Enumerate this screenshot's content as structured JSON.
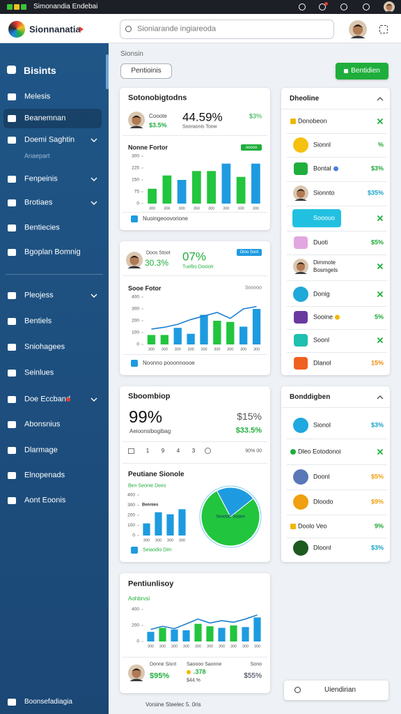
{
  "status_bar": {
    "title": "Simonandia Endebai"
  },
  "header": {
    "app_name": "Sionnanatia",
    "search_placeholder": "Sioniarande ingiareoda"
  },
  "sidebar": {
    "section": "Bisints",
    "active_index": 1,
    "items": [
      {
        "label": "Melesis"
      },
      {
        "label": "Beanemnan"
      },
      {
        "label": "Doemi Saghtin",
        "expandable": true
      },
      {
        "label": "Fenpeinis",
        "expandable": true
      },
      {
        "label": "Brotiaes",
        "expandable": true
      },
      {
        "label": "Bentiecies"
      },
      {
        "label": "Bgoplan Bomnig"
      },
      {
        "label": "Pleojess",
        "expandable": true
      },
      {
        "label": "Bentiels"
      },
      {
        "label": "Sniohagees"
      },
      {
        "label": "Seinlues"
      },
      {
        "label": "Doe Eccband",
        "expandable": true,
        "badge": true
      },
      {
        "label": "Abonsnius"
      },
      {
        "label": "Dlarmage"
      },
      {
        "label": "Elnopenads"
      },
      {
        "label": "Aont Eoonis"
      }
    ],
    "sub_item": "Anaepart",
    "footer": "Boonsefadiagia"
  },
  "page": {
    "breadcrumb": "Sionsin",
    "tab": "Pentioinis",
    "action": "Bentidien",
    "version": "Vorsine Steelec 5. 0ris",
    "search_button": "Uiendirian"
  },
  "summary": {
    "title": "Sotonobigtodns",
    "person_label": "Cooote",
    "person_change": "$3.5%",
    "big_value": "44.59%",
    "big_caption": "Sooraonis Toow",
    "side_value": "$3%",
    "section": "Nonne Fortor",
    "badge": "ooooo",
    "footer": "Nuoingeoovorione"
  },
  "trend": {
    "person_label": "Doos Stoot",
    "person_value": "30.3%",
    "big_value": "07%",
    "big_caption": "Tuelbs Dooioir",
    "badge": "Dloo Soot",
    "section": "Sooe Fotor",
    "section_note": "Sooooo",
    "footer": "Noonno pooonnoooe"
  },
  "score": {
    "title": "Sboombiop",
    "big_value": "99%",
    "side_value": "$15%",
    "caption": "Aeioonsibogibag",
    "side_change": "$33.5%",
    "toolbar": [
      "1",
      "9",
      "4",
      "3"
    ],
    "toolbar_note": "90% 00",
    "section": "Peutiane Sionole",
    "section_note": "Ben Seonie Dees",
    "footer": "Seiaodio Dim"
  },
  "portfolio": {
    "title": "Pentiunlisoy",
    "subtitle": "Aohbrvsi",
    "stats": [
      {
        "label": "Donne Sisnt",
        "value": "$95%"
      },
      {
        "label": "Saoooo Saonne",
        "value": ".378",
        "note": "$44.%"
      },
      {
        "label": "Sono",
        "value": "$55%"
      }
    ]
  },
  "lists": [
    {
      "title": "Dheoline",
      "rows": [
        {
          "label": "Donobeon",
          "icon": "star",
          "icon_color": "#f2b600",
          "check": true
        },
        {
          "label": "Sionnl",
          "icon": "circle",
          "icon_color": "#f5c010",
          "value": "%",
          "value_color": "#22a83a"
        },
        {
          "label": "Bontal",
          "icon": "square",
          "icon_color": "#1fae3c",
          "dot_color": "#4a7fe0",
          "value": "$3%",
          "value_color": "#22a83a"
        },
        {
          "label": "Sionnto",
          "icon": "avatar",
          "value": "$35%",
          "value_color": "#1aa3c8"
        },
        {
          "label": "Sooouo",
          "icon": "pill",
          "icon_color": "#22c0e0",
          "check": true
        },
        {
          "label": "Duoti",
          "icon": "square",
          "icon_color": "#e2a6e0",
          "value": "$5%",
          "value_color": "#22a83a"
        },
        {
          "label": "Dimmote",
          "sublabel": "Bosmgels",
          "icon": "avatar",
          "check": true
        },
        {
          "label": "Donig",
          "icon": "circle",
          "icon_color": "#1fa8d8",
          "check": true
        },
        {
          "label": "Sooine",
          "icon": "square",
          "icon_color": "#6a3aa0",
          "dot_color": "#f2b600",
          "value": "5%",
          "value_color": "#22a83a"
        },
        {
          "label": "Soonl",
          "icon": "square",
          "icon_color": "#1ec0b0",
          "check": true
        },
        {
          "label": "Dlanol",
          "icon": "square",
          "icon_color": "#f06020",
          "value": "15%",
          "value_color": "#f08a10"
        }
      ]
    },
    {
      "title": "Bonddigben",
      "rows": [
        {
          "label": "Sionol",
          "icon": "circle",
          "icon_color": "#20a8e0",
          "value": "$3%",
          "value_color": "#1aa3c8"
        },
        {
          "label": "Dleo Eotodonoi",
          "icon": "leaf",
          "icon_color": "#1fae3c",
          "check": true
        },
        {
          "label": "Doonl",
          "icon": "circle",
          "icon_color": "#5a78b8",
          "value": "$5%",
          "value_color": "#f0a010"
        },
        {
          "label": "Dloodo",
          "icon": "circle",
          "icon_color": "#f0a010",
          "value": "$9%",
          "value_color": "#f0a010"
        },
        {
          "label": "Doolo Veo",
          "icon": "star",
          "icon_color": "#f2b600",
          "value": "9%",
          "value_color": "#22a83a"
        },
        {
          "label": "Dloonl",
          "icon": "circle",
          "icon_color": "#1d5a20",
          "value": "$3%",
          "value_color": "#1aa3c8"
        }
      ]
    }
  ],
  "chart_data": [
    {
      "type": "bar",
      "categories": [
        "300",
        "306",
        "300",
        "350",
        "300",
        "300",
        "300",
        "300"
      ],
      "values": [
        94,
        178,
        150,
        206,
        206,
        253,
        169,
        253
      ],
      "colors": [
        "#22c53e",
        "#22c53e",
        "#1e9be0",
        "#22c53e",
        "#22c53e",
        "#1e9be0",
        "#22c53e",
        "#1e9be0"
      ],
      "ylim": [
        0,
        300
      ],
      "yticks": [
        0,
        75,
        150,
        225,
        300
      ]
    },
    {
      "type": "bar_line",
      "categories": [
        "300",
        "300",
        "300",
        "300",
        "300",
        "300",
        "300",
        "300",
        "300"
      ],
      "values": [
        80,
        80,
        140,
        90,
        250,
        200,
        190,
        150,
        300
      ],
      "colors": [
        "#22c53e",
        "#22c53e",
        "#1e9be0",
        "#1e9be0",
        "#1e9be0",
        "#22c53e",
        "#22c53e",
        "#1e9be0",
        "#1e9be0"
      ],
      "line_values": [
        130,
        145,
        170,
        210,
        240,
        270,
        220,
        300,
        320
      ],
      "line_color": "#1e7fd0",
      "ylim": [
        0,
        400
      ],
      "yticks": [
        0,
        100,
        200,
        300,
        400
      ]
    },
    {
      "type": "bar",
      "categories": [
        "300",
        "300",
        "300",
        "300"
      ],
      "values": [
        120,
        230,
        210,
        260
      ],
      "colors": [
        "#1e9be0",
        "#1e9be0",
        "#1e9be0",
        "#1e9be0"
      ],
      "ylim": [
        0,
        400
      ],
      "yticks": [
        0,
        100,
        200,
        300,
        400
      ],
      "annotation": "Bennies"
    },
    {
      "type": "pie",
      "values": [
        78,
        22
      ],
      "colors": [
        "#22c53e",
        "#1e9be0"
      ],
      "center_label": "Seoobib Sotare"
    },
    {
      "type": "bar_line",
      "categories": [
        "300",
        "300",
        "300",
        "300",
        "300",
        "300",
        "300",
        "300",
        "300",
        "300"
      ],
      "values": [
        120,
        170,
        150,
        140,
        220,
        190,
        170,
        200,
        180,
        300
      ],
      "colors": [
        "#1e9be0",
        "#22c53e",
        "#1e9be0",
        "#1e9be0",
        "#22c53e",
        "#22c53e",
        "#1e9be0",
        "#22c53e",
        "#1e9be0",
        "#1e9be0"
      ],
      "line_values": [
        150,
        190,
        160,
        220,
        280,
        230,
        260,
        240,
        280,
        330
      ],
      "line_color": "#1e7fd0",
      "ylim": [
        0,
        400
      ],
      "yticks": [
        0,
        200,
        400
      ]
    }
  ]
}
